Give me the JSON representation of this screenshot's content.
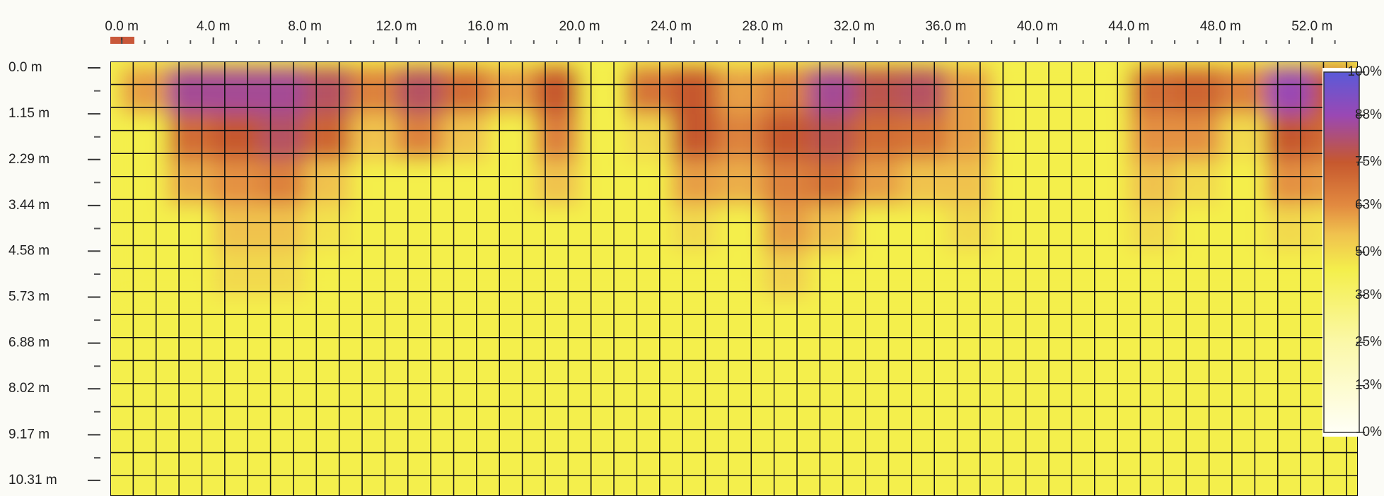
{
  "chart_data": {
    "type": "heatmap",
    "x_edges": [
      0,
      2,
      4,
      6,
      8,
      10,
      12,
      14,
      16,
      18,
      20,
      22,
      24,
      26,
      28,
      30,
      32,
      34,
      36,
      38,
      40,
      42,
      44,
      46,
      48,
      50,
      52,
      54
    ],
    "y_edges": [
      0,
      1.15,
      2.29,
      3.44,
      4.58,
      5.73
    ],
    "z": [
      [
        60,
        85,
        85,
        85,
        80,
        65,
        80,
        70,
        60,
        75,
        45,
        68,
        75,
        60,
        65,
        85,
        78,
        80,
        60,
        45,
        45,
        45,
        70,
        72,
        65,
        88,
        75
      ],
      [
        45,
        70,
        75,
        80,
        72,
        55,
        65,
        55,
        45,
        65,
        45,
        50,
        75,
        65,
        75,
        78,
        70,
        68,
        60,
        45,
        45,
        45,
        62,
        62,
        50,
        75,
        70
      ],
      [
        45,
        58,
        62,
        65,
        55,
        45,
        45,
        45,
        45,
        55,
        45,
        45,
        60,
        58,
        65,
        68,
        60,
        55,
        55,
        45,
        45,
        45,
        55,
        50,
        45,
        62,
        60
      ],
      [
        45,
        45,
        55,
        55,
        48,
        45,
        45,
        45,
        45,
        45,
        45,
        45,
        50,
        45,
        60,
        55,
        45,
        45,
        50,
        45,
        45,
        45,
        50,
        45,
        45,
        50,
        48
      ],
      [
        45,
        45,
        50,
        50,
        45,
        45,
        45,
        45,
        45,
        45,
        45,
        45,
        45,
        45,
        52,
        45,
        45,
        45,
        45,
        45,
        45,
        45,
        45,
        45,
        45,
        45,
        45
      ]
    ],
    "xlim": [
      -0.5,
      54
    ],
    "ylim": [
      -0.16,
      10.7
    ],
    "xticks": [
      {
        "value": 0,
        "label": "0.0 m"
      },
      {
        "value": 4,
        "label": "4.0 m"
      },
      {
        "value": 8,
        "label": "8.0 m"
      },
      {
        "value": 12,
        "label": "12.0 m"
      },
      {
        "value": 16,
        "label": "16.0 m"
      },
      {
        "value": 20,
        "label": "20.0 m"
      },
      {
        "value": 24,
        "label": "24.0 m"
      },
      {
        "value": 28,
        "label": "28.0 m"
      },
      {
        "value": 32,
        "label": "32.0 m"
      },
      {
        "value": 36,
        "label": "36.0 m"
      },
      {
        "value": 40,
        "label": "40.0 m"
      },
      {
        "value": 44,
        "label": "44.0 m"
      },
      {
        "value": 48,
        "label": "48.0 m"
      },
      {
        "value": 52,
        "label": "52.0 m"
      }
    ],
    "yticks": [
      {
        "value": 0,
        "label": "0.0 m"
      },
      {
        "value": 1.15,
        "label": "1.15 m"
      },
      {
        "value": 2.29,
        "label": "2.29 m"
      },
      {
        "value": 3.44,
        "label": "3.44 m"
      },
      {
        "value": 4.58,
        "label": "4.58 m"
      },
      {
        "value": 5.73,
        "label": "5.73 m"
      },
      {
        "value": 6.88,
        "label": "6.88 m"
      },
      {
        "value": 8.02,
        "label": "8.02 m"
      },
      {
        "value": 9.17,
        "label": "9.17 m"
      },
      {
        "value": 10.31,
        "label": "10.31 m"
      }
    ],
    "colorbar_lim": [
      0,
      100
    ],
    "colorbar_ticks": [
      {
        "value": 100,
        "label": "100%"
      },
      {
        "value": 88,
        "label": "88%"
      },
      {
        "value": 75,
        "label": "75%"
      },
      {
        "value": 63,
        "label": "63%"
      },
      {
        "value": 50,
        "label": "50%"
      },
      {
        "value": 38,
        "label": "38%"
      },
      {
        "value": 25,
        "label": "25%"
      },
      {
        "value": 13,
        "label": "13%"
      },
      {
        "value": 0,
        "label": "0%"
      }
    ],
    "colorscale": [
      [
        0,
        "#fffff6"
      ],
      [
        25,
        "#fbf8a8"
      ],
      [
        45,
        "#f4ef4c"
      ],
      [
        55,
        "#f0c24e"
      ],
      [
        63,
        "#e28a40"
      ],
      [
        75,
        "#c6582e"
      ],
      [
        88,
        "#9a48b4"
      ],
      [
        100,
        "#5a5ad8"
      ]
    ]
  }
}
